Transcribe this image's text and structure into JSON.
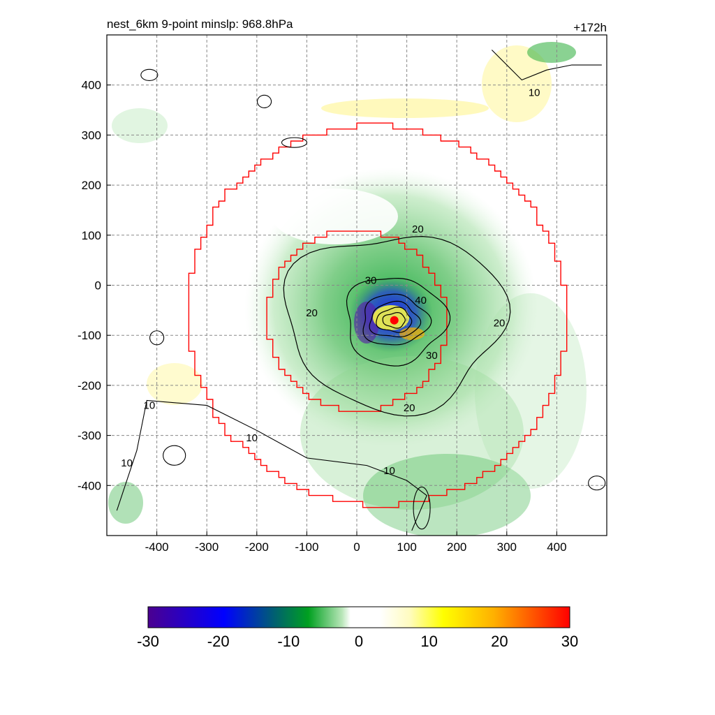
{
  "header": {
    "title_left": "nest_6km  9-point minslp: 968.8hPa",
    "title_right": "+172h"
  },
  "chart_data": {
    "type": "heatmap",
    "title": "nest_6km  9-point minslp: 968.8hPa",
    "subtitle": "+172h",
    "xlim": [
      -500,
      500
    ],
    "ylim": [
      -500,
      500
    ],
    "x_ticks": [
      -400,
      -300,
      -200,
      -100,
      0,
      100,
      200,
      300,
      400
    ],
    "y_ticks": [
      400,
      300,
      200,
      100,
      0,
      -100,
      -200,
      -300,
      -400
    ],
    "grid": true,
    "center": {
      "x": 75,
      "y": -70,
      "color": "#ff0000"
    },
    "contour_levels": [
      10,
      20,
      30,
      40
    ],
    "contour_labels": [
      {
        "text": "20",
        "x": 122,
        "y": 112
      },
      {
        "text": "30",
        "x": 28,
        "y": 10
      },
      {
        "text": "40",
        "x": 128,
        "y": -30
      },
      {
        "text": "20",
        "x": -90,
        "y": -55
      },
      {
        "text": "20",
        "x": 285,
        "y": -75
      },
      {
        "text": "30",
        "x": 150,
        "y": -140
      },
      {
        "text": "20",
        "x": 105,
        "y": -245
      },
      {
        "text": "10",
        "x": 355,
        "y": 385
      },
      {
        "text": "10",
        "x": -415,
        "y": -240
      },
      {
        "text": "10",
        "x": -210,
        "y": -305
      },
      {
        "text": "10",
        "x": -460,
        "y": -355
      },
      {
        "text": "10",
        "x": 65,
        "y": -370
      }
    ],
    "inner_ring": {
      "center": [
        0,
        -70
      ],
      "radius": 180,
      "color": "#ff0000"
    },
    "outer_ring": {
      "center": [
        40,
        -60
      ],
      "radius": 380,
      "color": "#ff0000"
    },
    "colorbar": {
      "min": -30,
      "max": 30,
      "ticks": [
        -30,
        -20,
        -10,
        0,
        10,
        20,
        30
      ],
      "colors": [
        "#4b0090",
        "#0000ff",
        "#00a020",
        "#ffffff",
        "#ffff00",
        "#ff0000"
      ]
    }
  }
}
